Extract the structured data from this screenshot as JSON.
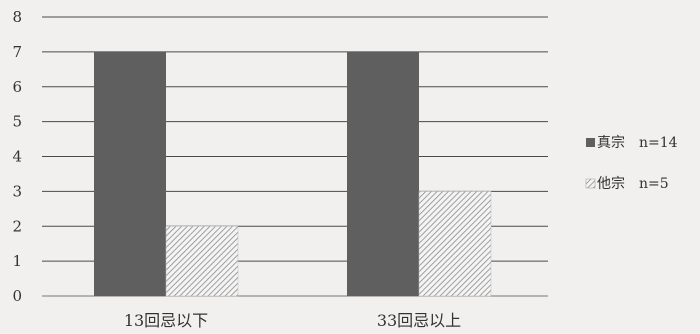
{
  "chart_data": {
    "type": "bar",
    "title": "",
    "xlabel": "",
    "ylabel": "",
    "ylim": [
      0,
      8
    ],
    "yticks": [
      0,
      1,
      2,
      3,
      4,
      5,
      6,
      7,
      8
    ],
    "grid": true,
    "legend_position": "right",
    "categories": [
      "13回忌以下",
      "33回忌以上"
    ],
    "series": [
      {
        "name": "真宗　n=14",
        "values": [
          7,
          7
        ],
        "fill": "#5f5f5f",
        "pattern": "solid"
      },
      {
        "name": "他宗　n=5",
        "values": [
          2,
          3
        ],
        "fill": "#dcdcdc",
        "pattern": "hatched"
      }
    ]
  }
}
